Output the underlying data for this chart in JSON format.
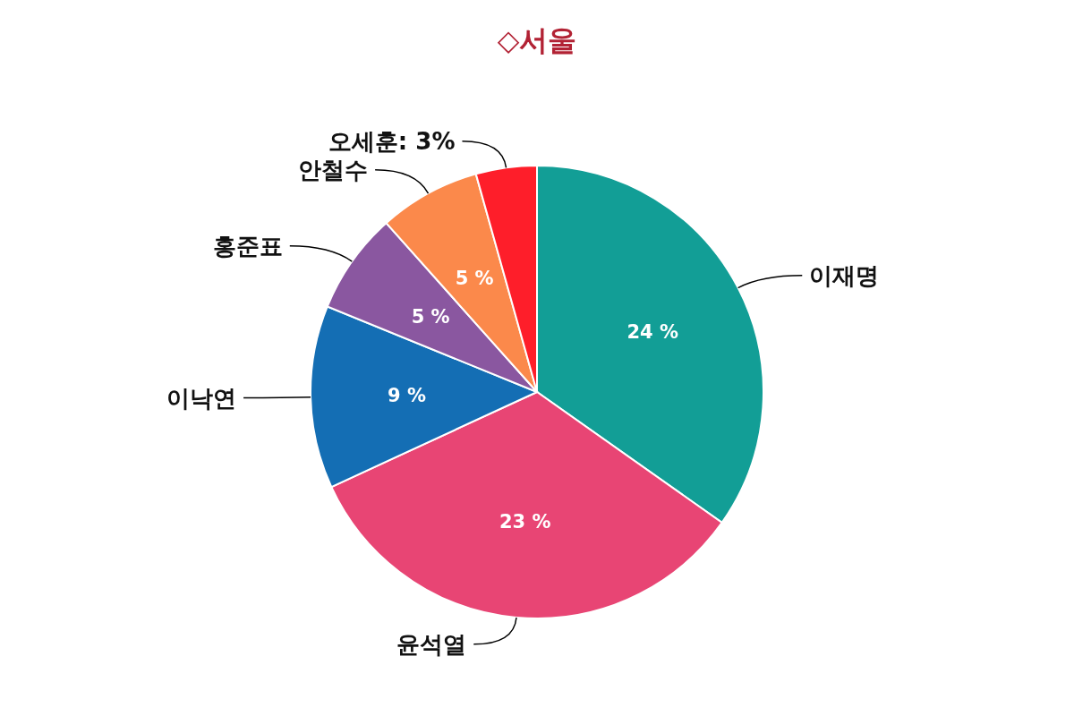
{
  "chart_data": {
    "type": "pie",
    "title": "◇서울",
    "categories": [
      "이재명",
      "윤석열",
      "이낙연",
      "홍준표",
      "안철수",
      "오세훈"
    ],
    "values": [
      24,
      23,
      9,
      5,
      5,
      3
    ],
    "colors": [
      "#129e96",
      "#e84574",
      "#146eb4",
      "#8a57a0",
      "#fb894b",
      "#fe1e2a"
    ],
    "value_labels": [
      "24 %",
      "23 %",
      "9 %",
      "5 %",
      "5 %",
      "3%"
    ]
  }
}
